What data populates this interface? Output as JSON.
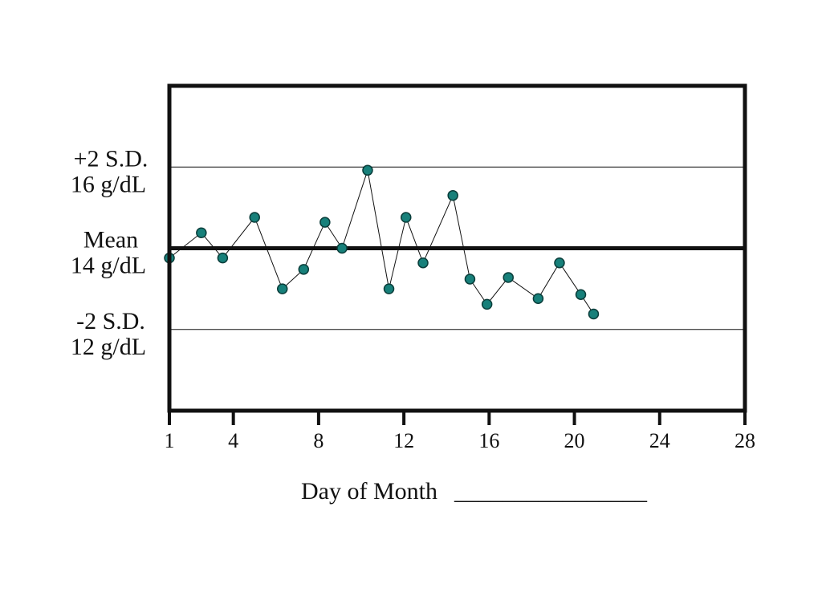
{
  "chart_data": {
    "type": "line",
    "title": "",
    "xlabel": "Day of Month",
    "xlabel_blank": "________________",
    "ylabel": "",
    "xlim": [
      1,
      28
    ],
    "ylim": [
      10,
      18
    ],
    "x_ticks": [
      1,
      4,
      8,
      12,
      16,
      20,
      24,
      28
    ],
    "reference_lines": [
      {
        "name": "+2 S.D.",
        "unit_label": "16 g/dL",
        "value": 16,
        "style": "thin"
      },
      {
        "name": "Mean",
        "unit_label": "14 g/dL",
        "value": 14,
        "style": "thick"
      },
      {
        "name": "-2 S.D.",
        "unit_label": "12 g/dL",
        "value": 12,
        "style": "thin"
      }
    ],
    "series": [
      {
        "x": [
          1,
          2.5,
          3.5,
          5,
          6.3,
          7.3,
          8.3,
          9.1,
          10.3,
          11.3,
          12.1,
          12.9,
          14.3,
          15.1,
          15.9,
          16.9,
          18.3,
          19.3,
          20.3,
          20.9
        ],
        "y": [
          13.76,
          14.38,
          13.76,
          14.76,
          13.0,
          13.48,
          14.64,
          14.0,
          15.92,
          13.0,
          14.76,
          13.64,
          15.3,
          13.24,
          12.62,
          13.28,
          12.76,
          13.64,
          12.86,
          12.38
        ]
      }
    ],
    "point_color": "#17807a",
    "grid": false
  }
}
